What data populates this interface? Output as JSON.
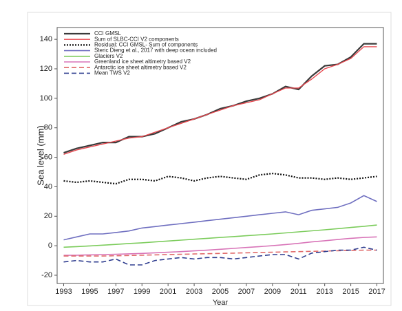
{
  "chart_data": {
    "type": "line",
    "x_label": "Year",
    "y_label": "Sea level (mm)",
    "x": [
      1993,
      1994,
      1995,
      1996,
      1997,
      1998,
      1999,
      2000,
      2001,
      2002,
      2003,
      2004,
      2005,
      2006,
      2007,
      2008,
      2009,
      2010,
      2011,
      2012,
      2013,
      2014,
      2015,
      2016,
      2017
    ],
    "xlim": [
      1992.5,
      2017.5
    ],
    "xticks": [
      1993,
      1995,
      1997,
      1999,
      2001,
      2003,
      2005,
      2007,
      2009,
      2011,
      2013,
      2015,
      2017
    ],
    "ylim": [
      -25.6,
      148
    ],
    "yticks": [
      -20,
      0,
      20,
      40,
      60,
      80,
      100,
      120,
      140
    ],
    "legend": "top-left",
    "series": [
      {
        "name": "CCI GMSL",
        "color": "#3a3a3a",
        "style": "solid",
        "width": 2.2,
        "values": [
          63,
          66,
          68,
          70,
          70,
          74,
          74,
          76,
          80,
          84,
          86,
          89,
          93,
          95,
          98,
          100,
          103,
          108,
          106,
          115,
          122,
          123,
          128,
          137,
          137
        ]
      },
      {
        "name": "Sum of SLBC-CCI V2 components",
        "color": "#e8484f",
        "style": "solid",
        "width": 1.4,
        "values": [
          62,
          65,
          67,
          69,
          71,
          73,
          74,
          77,
          80,
          83,
          86,
          89,
          92,
          95,
          97,
          99,
          103,
          107,
          107,
          113,
          120,
          123,
          127,
          135,
          135
        ]
      },
      {
        "name": "Residual: CCI GMSL- Sum of components",
        "color": "#111111",
        "style": "dotted",
        "width": 2.2,
        "values": [
          44,
          43,
          44,
          43,
          42,
          45,
          45,
          44,
          47,
          46,
          44,
          46,
          47,
          46,
          45,
          48,
          49,
          48,
          46,
          46,
          45,
          46,
          45,
          46,
          47
        ]
      },
      {
        "name": "Steric Dieng et al., 2017 with deep ocean included",
        "color": "#6f6fc0",
        "style": "solid",
        "width": 1.6,
        "values": [
          4,
          6,
          8,
          8,
          9,
          10,
          12,
          13,
          14,
          15,
          16,
          17,
          18,
          19,
          20,
          21,
          22,
          23,
          21,
          24,
          25,
          26,
          29,
          34,
          30
        ]
      },
      {
        "name": "Glaciers V2",
        "color": "#7ccc5c",
        "style": "solid",
        "width": 1.6,
        "values": [
          -1,
          -0.6,
          -0.1,
          0.4,
          0.9,
          1.5,
          2,
          2.6,
          3.2,
          3.8,
          4.4,
          5,
          5.6,
          6.2,
          6.8,
          7.4,
          8,
          8.7,
          9.4,
          10.1,
          10.8,
          11.6,
          12.4,
          13.2,
          14
        ]
      },
      {
        "name": "Greenland ice sheet altimetry based V2",
        "color": "#d874b8",
        "style": "solid",
        "width": 1.6,
        "values": [
          -6.5,
          -6.4,
          -6.2,
          -6,
          -5.8,
          -5.5,
          -5.2,
          -4.8,
          -4.4,
          -4,
          -3.5,
          -3,
          -2.4,
          -1.8,
          -1.2,
          -0.6,
          0,
          0.8,
          1.6,
          2.6,
          3.4,
          4.2,
          5,
          5.6,
          6
        ]
      },
      {
        "name": "Antarctic ice sheet altimetry based V2",
        "color": "#e06a6a",
        "style": "dashed",
        "width": 1.6,
        "values": [
          -7,
          -7,
          -7,
          -7,
          -6.8,
          -6.6,
          -6.4,
          -6.2,
          -6,
          -5.8,
          -5.6,
          -5.4,
          -5.2,
          -5,
          -4.8,
          -4.6,
          -4.4,
          -4.2,
          -4,
          -3.8,
          -3.6,
          -3.4,
          -3.2,
          -3,
          -3
        ]
      },
      {
        "name": "Mean TWS V2",
        "color": "#2f3d8f",
        "style": "dashed",
        "width": 1.6,
        "values": [
          -11,
          -10,
          -11,
          -11,
          -9,
          -13,
          -13,
          -10,
          -9,
          -8,
          -9,
          -8,
          -8,
          -9,
          -8,
          -7,
          -6,
          -6,
          -9,
          -5,
          -4,
          -3,
          -3,
          -1,
          -3
        ]
      }
    ]
  }
}
